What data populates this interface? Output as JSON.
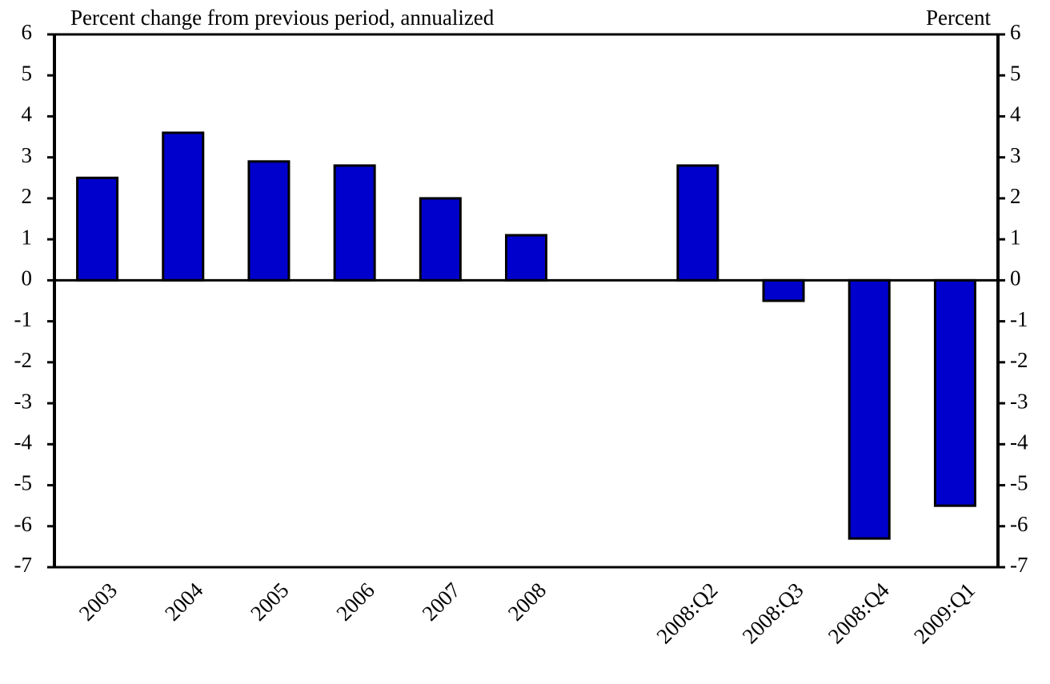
{
  "chart_data": {
    "type": "bar",
    "title": "Percent change from previous period, annualized",
    "y2_label": "Percent",
    "categories": [
      "2003",
      "2004",
      "2005",
      "2006",
      "2007",
      "2008",
      null,
      "2008:Q2",
      "2008:Q3",
      "2008:Q4",
      "2009:Q1"
    ],
    "values": [
      2.5,
      3.6,
      2.9,
      2.8,
      2.0,
      1.1,
      null,
      2.8,
      -0.5,
      -6.3,
      -5.5
    ],
    "color": "#0000cc",
    "ylim": [
      -7,
      6
    ],
    "yticks": [
      -7,
      -6,
      -5,
      -4,
      -3,
      -2,
      -1,
      0,
      1,
      2,
      3,
      4,
      5,
      6
    ],
    "y2lim": [
      -7,
      6
    ],
    "y2ticks": [
      -7,
      -6,
      -5,
      -4,
      -3,
      -2,
      -1,
      0,
      1,
      2,
      3,
      4,
      5,
      6
    ]
  }
}
